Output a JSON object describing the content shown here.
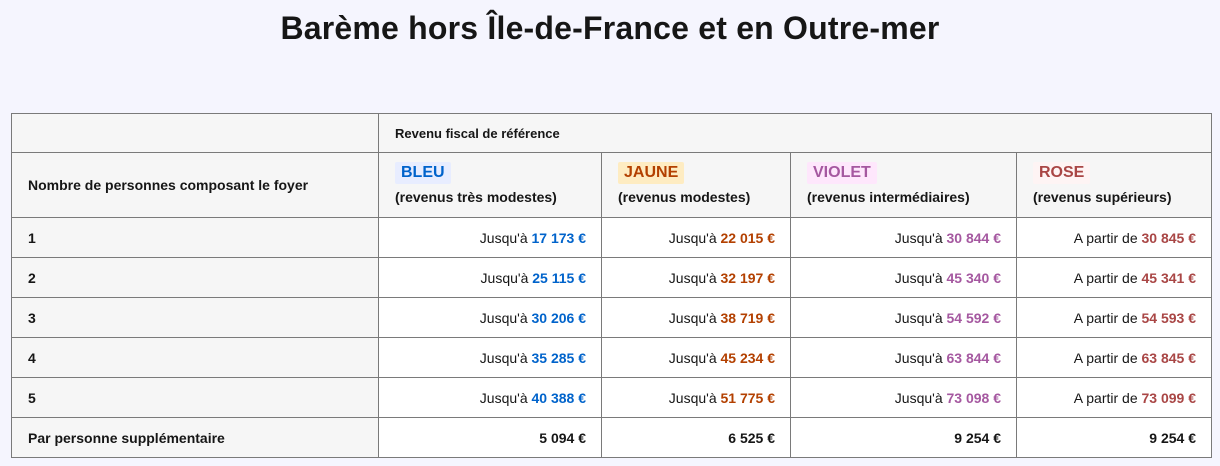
{
  "title": "Barème hors Île-de-France et en Outre-mer",
  "table": {
    "header_group": "Revenu fiscal de référence",
    "first_col_header": "Nombre de personnes composant le foyer",
    "categories": [
      {
        "tag": "BLEU",
        "subtitle": "(revenus très modestes)",
        "color": "#0063cb",
        "bg": "#e8edff"
      },
      {
        "tag": "JAUNE",
        "subtitle": "(revenus modestes)",
        "color": "#b34000",
        "bg": "#feecc2"
      },
      {
        "tag": "VIOLET",
        "subtitle": "(revenus intermédiaires)",
        "color": "#a558a0",
        "bg": "#fee7fc"
      },
      {
        "tag": "ROSE",
        "subtitle": "(revenus supérieurs)",
        "color": "#a94645",
        "bg": "#fef4f4"
      }
    ],
    "prefix_upto": "Jusqu'à ",
    "prefix_from": "A partir de ",
    "rows": [
      {
        "label": "1",
        "values": [
          "17 173 €",
          "22 015 €",
          "30 844 €",
          "30 845 €"
        ]
      },
      {
        "label": "2",
        "values": [
          "25 115 €",
          "32 197 €",
          "45 340 €",
          "45 341 €"
        ]
      },
      {
        "label": "3",
        "values": [
          "30 206 €",
          "38 719 €",
          "54 592 €",
          "54 593 €"
        ]
      },
      {
        "label": "4",
        "values": [
          "35 285 €",
          "45 234 €",
          "63 844 €",
          "63 845 €"
        ]
      },
      {
        "label": "5",
        "values": [
          "40 388 €",
          "51 775 €",
          "73 098 €",
          "73 099 €"
        ]
      }
    ],
    "extra_row": {
      "label": "Par personne supplémentaire",
      "values": [
        "5 094 €",
        "6 525 €",
        "9 254 €",
        "9 254 €"
      ]
    }
  }
}
